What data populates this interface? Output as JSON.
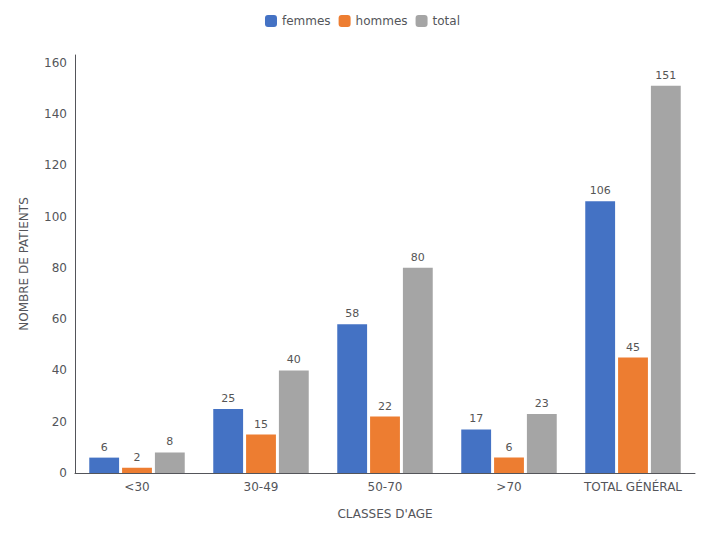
{
  "chart_data": {
    "type": "bar",
    "categories": [
      "<30",
      "30-49",
      "50-70",
      ">70",
      "TOTAL GÉNÉRAL"
    ],
    "series": [
      {
        "name": "femmes",
        "color": "#4472C4",
        "values": [
          6,
          25,
          58,
          17,
          106
        ]
      },
      {
        "name": "hommes",
        "color": "#ED7D31",
        "values": [
          2,
          15,
          22,
          6,
          45
        ]
      },
      {
        "name": "total",
        "color": "#A5A5A5",
        "values": [
          8,
          40,
          80,
          23,
          151
        ]
      }
    ],
    "xlabel": "CLASSES D'AGE",
    "ylabel": "NOMBRE DE PATIENTS",
    "ylim": [
      0,
      163
    ],
    "yticks": [
      0,
      20,
      40,
      60,
      80,
      100,
      120,
      140,
      160
    ],
    "grid": false,
    "legend": "top",
    "data_labels": true
  }
}
